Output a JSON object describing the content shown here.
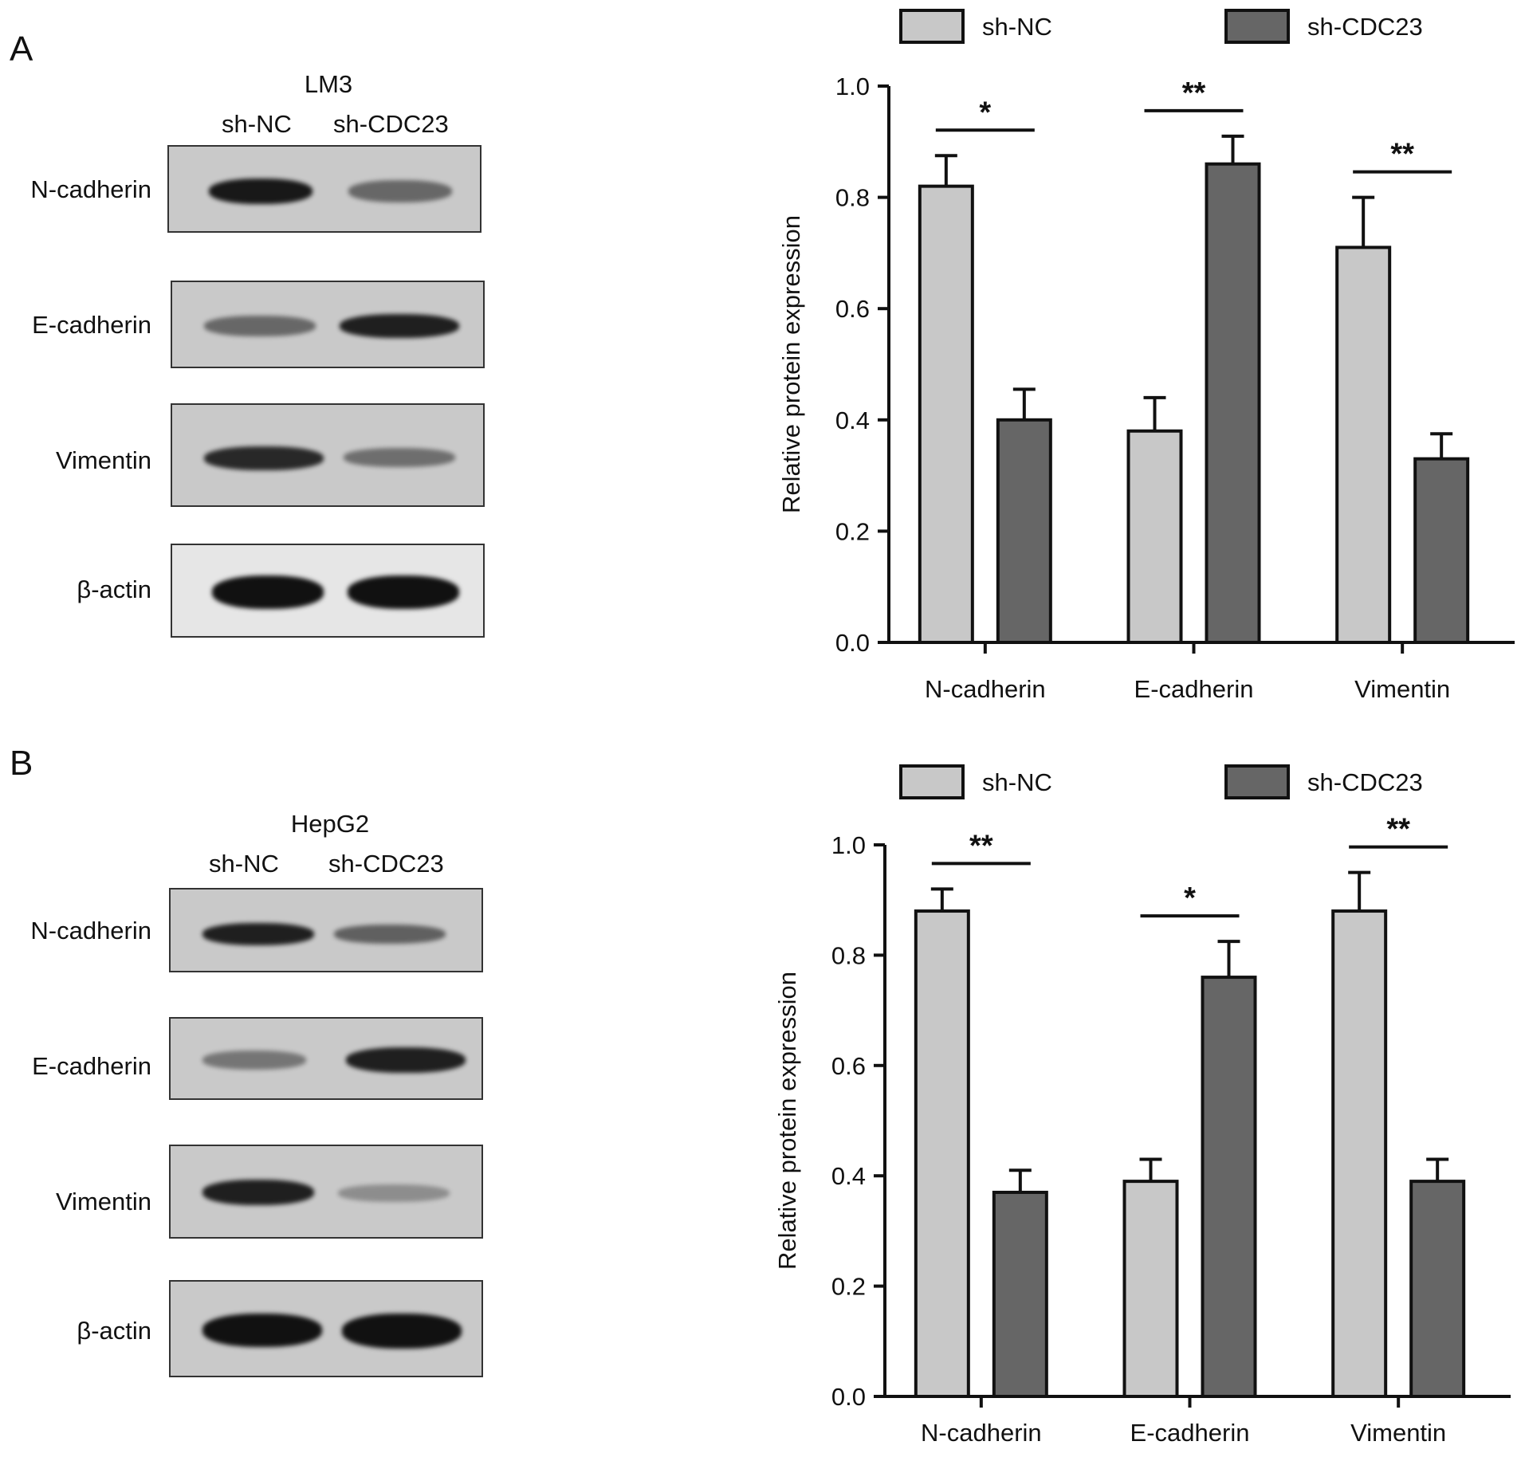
{
  "panels": [
    {
      "letter": "A",
      "cell_line": "LM3",
      "lanes": [
        "sh-NC",
        "sh-CDC23"
      ],
      "blot_rows": [
        {
          "label": "N-cadherin",
          "intensity": [
            0.95,
            0.45
          ]
        },
        {
          "label": "E-cadherin",
          "intensity": [
            0.45,
            0.9
          ]
        },
        {
          "label": "Vimentin",
          "intensity": [
            0.85,
            0.4
          ]
        },
        {
          "label": "β-actin",
          "intensity": [
            1.0,
            1.0
          ]
        }
      ]
    },
    {
      "letter": "B",
      "cell_line": "HepG2",
      "lanes": [
        "sh-NC",
        "sh-CDC23"
      ],
      "blot_rows": [
        {
          "label": "N-cadherin",
          "intensity": [
            0.9,
            0.5
          ]
        },
        {
          "label": "E-cadherin",
          "intensity": [
            0.35,
            0.9
          ]
        },
        {
          "label": "Vimentin",
          "intensity": [
            0.9,
            0.2
          ]
        },
        {
          "label": "β-actin",
          "intensity": [
            1.0,
            1.0
          ]
        }
      ]
    }
  ],
  "colors": {
    "sh_nc": "#c8c8c8",
    "sh_cdc23": "#666666",
    "band": "#111111"
  },
  "chart_data": [
    {
      "type": "bar",
      "categories": [
        "N-cadherin",
        "E-cadherin",
        "Vimentin"
      ],
      "series": [
        {
          "name": "sh-NC",
          "values": [
            0.82,
            0.38,
            0.71
          ],
          "errors": [
            0.055,
            0.06,
            0.09
          ]
        },
        {
          "name": "sh-CDC23",
          "values": [
            0.4,
            0.86,
            0.33
          ],
          "errors": [
            0.055,
            0.05,
            0.045
          ]
        }
      ],
      "significance": [
        "*",
        "**",
        "**"
      ],
      "ylabel": "Relative protein expression",
      "xlabel": "",
      "ylim": [
        0,
        1.0
      ],
      "yticks": [
        "0.0",
        "0.2",
        "0.4",
        "0.6",
        "0.8",
        "1.0"
      ],
      "legend": "top"
    },
    {
      "type": "bar",
      "categories": [
        "N-cadherin",
        "E-cadherin",
        "Vimentin"
      ],
      "series": [
        {
          "name": "sh-NC",
          "values": [
            0.88,
            0.39,
            0.88
          ],
          "errors": [
            0.04,
            0.04,
            0.07
          ]
        },
        {
          "name": "sh-CDC23",
          "values": [
            0.37,
            0.76,
            0.39
          ],
          "errors": [
            0.04,
            0.065,
            0.04
          ]
        }
      ],
      "significance": [
        "**",
        "*",
        "**"
      ],
      "ylabel": "Relative protein expression",
      "xlabel": "",
      "ylim": [
        0,
        1.0
      ],
      "yticks": [
        "0.0",
        "0.2",
        "0.4",
        "0.6",
        "0.8",
        "1.0"
      ],
      "legend": "top"
    }
  ]
}
